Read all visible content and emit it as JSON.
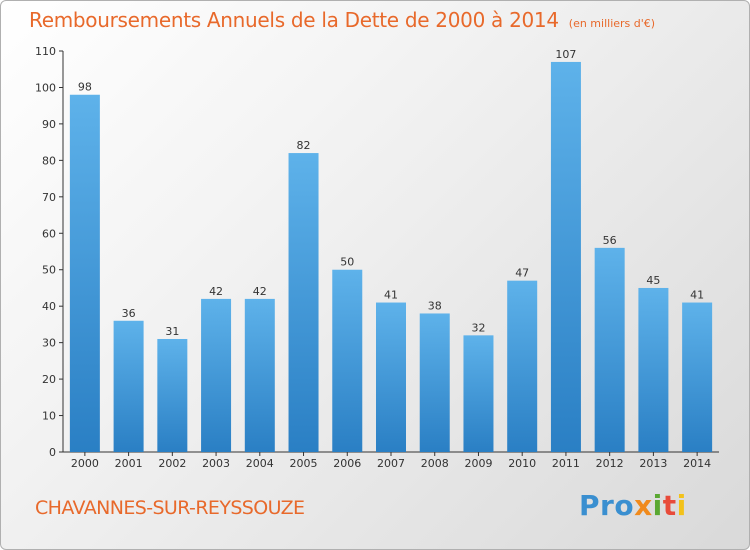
{
  "header": {
    "title": "Remboursements Annuels de la Dette de 2000 à 2014",
    "unit": "(en milliers d'€)"
  },
  "footer": {
    "commune": "CHAVANNES-SUR-REYSSOUZE",
    "logo_parts": [
      "Pro",
      "x",
      "i",
      "t",
      "i"
    ]
  },
  "colors": {
    "bar_light": "#5eb2ea",
    "bar_dark": "#2a7fc4",
    "title": "#e8692b"
  },
  "chart_data": {
    "type": "bar",
    "title": "Remboursements Annuels de la Dette de 2000 à 2014",
    "ylabel": "en milliers d'€",
    "xlabel": "",
    "categories": [
      "2000",
      "2001",
      "2002",
      "2003",
      "2004",
      "2005",
      "2006",
      "2007",
      "2008",
      "2009",
      "2010",
      "2011",
      "2012",
      "2013",
      "2014"
    ],
    "values": [
      98,
      36,
      31,
      42,
      42,
      82,
      50,
      41,
      38,
      32,
      47,
      107,
      56,
      45,
      41
    ],
    "ylim": [
      0,
      110
    ],
    "yticks": [
      0,
      10,
      20,
      30,
      40,
      50,
      60,
      70,
      80,
      90,
      100,
      110
    ],
    "grid": false
  }
}
